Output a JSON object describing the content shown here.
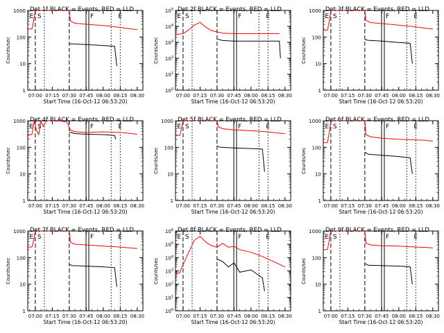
{
  "figure": {
    "xlabel": "Start Time (16-Oct-12 06:53:20)",
    "ylabel": "Counts/sec"
  },
  "chart_data": [
    {
      "type": "line",
      "title": "Det 1f BLACK = Events, RED = LLD",
      "xlabel": "Start Time (16-Oct-12 06:53:20)",
      "ylabel": "Counts/sec",
      "log_y": true,
      "ylim": [
        1,
        1000
      ],
      "yticks": [
        "1",
        "10",
        "100",
        "1000"
      ],
      "xticks": [
        "07:00",
        "07:15",
        "07:30",
        "07:45",
        "08:00",
        "08:15",
        "08:30"
      ],
      "markers": [
        "E",
        "S",
        "F",
        "E"
      ],
      "series": [
        {
          "name": "RED = LLD",
          "color": "#ff0000",
          "x": [
            "06:53",
            "06:57",
            "06:58",
            "07:00",
            "07:01",
            "07:05",
            "07:30",
            "07:31",
            "07:35",
            "07:45",
            "08:00",
            "08:15",
            "08:25",
            "08:30"
          ],
          "values": [
            200,
            200,
            300,
            1000,
            1000,
            1000,
            1000,
            400,
            330,
            300,
            270,
            230,
            200,
            190
          ]
        },
        {
          "name": "BLACK = Events",
          "color": "#000000",
          "x": [
            "07:30",
            "07:33",
            "07:45",
            "08:00",
            "08:10",
            "08:12"
          ],
          "values": [
            55,
            55,
            52,
            48,
            45,
            8
          ]
        }
      ]
    },
    {
      "type": "line",
      "title": "Det 2f BLACK = Events, RED = LLD",
      "xlabel": "Start Time (16-Oct-12 06:53:20)",
      "ylabel": "Counts/sec",
      "log_y": true,
      "ylim": [
        1,
        100000
      ],
      "yticks": [
        "10^0",
        "10^1",
        "10^2",
        "10^3",
        "10^4",
        "10^5"
      ],
      "xticks": [
        "07:00",
        "07:15",
        "07:30",
        "07:45",
        "08:00",
        "08:15",
        "08:30"
      ],
      "markers": [
        "E",
        "S",
        "F",
        "E"
      ],
      "series": [
        {
          "name": "RED = LLD",
          "color": "#ff0000",
          "x": [
            "06:53",
            "07:00",
            "07:05",
            "07:10",
            "07:15",
            "07:20",
            "07:25",
            "07:30",
            "07:35",
            "07:45",
            "08:00",
            "08:15",
            "08:25"
          ],
          "values": [
            3000,
            3500,
            6000,
            12000,
            18000,
            9000,
            5500,
            4500,
            3800,
            3500,
            3500,
            3500,
            3500
          ]
        },
        {
          "name": "BLACK = Events",
          "color": "#000000",
          "x": [
            "07:30",
            "07:35",
            "07:45",
            "08:00",
            "08:15",
            "08:25",
            "08:26"
          ],
          "values": [
            1600,
            1300,
            1200,
            1200,
            1200,
            1200,
            100
          ]
        }
      ]
    },
    {
      "type": "line",
      "title": "Det 3f BLACK = Events, RED = LLD",
      "xlabel": "Start Time (16-Oct-12 06:53:20)",
      "ylabel": "Counts/sec",
      "log_y": true,
      "ylim": [
        1,
        1000
      ],
      "yticks": [
        "1",
        "10",
        "100",
        "1000"
      ],
      "xticks": [
        "07:00",
        "07:15",
        "07:30",
        "07:45",
        "08:00",
        "08:15",
        "08:30"
      ],
      "markers": [
        "E",
        "S",
        "F",
        "E"
      ],
      "series": [
        {
          "name": "RED = LLD",
          "color": "#ff0000",
          "x": [
            "06:53",
            "06:57",
            "06:58",
            "07:00",
            "07:01",
            "07:05",
            "07:30",
            "07:31",
            "07:35",
            "07:45",
            "08:00",
            "08:15",
            "08:25",
            "08:30"
          ],
          "values": [
            180,
            180,
            280,
            950,
            1000,
            1000,
            1000,
            420,
            350,
            320,
            280,
            240,
            210,
            200
          ]
        },
        {
          "name": "BLACK = Events",
          "color": "#000000",
          "x": [
            "07:30",
            "07:33",
            "07:45",
            "08:00",
            "08:10",
            "08:12"
          ],
          "values": [
            80,
            75,
            70,
            62,
            58,
            10
          ]
        }
      ]
    },
    {
      "type": "line",
      "title": "Det 4f BLACK = Events, RED = LLD",
      "xlabel": "Start Time (16-Oct-12 06:53:20)",
      "ylabel": "Counts/sec",
      "log_y": true,
      "ylim": [
        1,
        1000
      ],
      "yticks": [
        "1",
        "10",
        "100",
        "1000"
      ],
      "xticks": [
        "07:00",
        "07:15",
        "07:30",
        "07:45",
        "08:00",
        "08:15",
        "08:30"
      ],
      "markers": [
        "E",
        "S",
        "F",
        "E"
      ],
      "series": [
        {
          "name": "RED = LLD",
          "color": "#ff0000",
          "x": [
            "06:53",
            "06:57",
            "06:59",
            "07:01",
            "07:03",
            "07:05",
            "07:07",
            "07:10",
            "07:20",
            "07:28",
            "07:31",
            "07:35",
            "07:45",
            "08:00",
            "08:15",
            "08:25",
            "08:30"
          ],
          "values": [
            280,
            300,
            1000,
            450,
            300,
            1000,
            600,
            1000,
            1000,
            900,
            450,
            390,
            360,
            380,
            360,
            330,
            310
          ]
        },
        {
          "name": "BLACK = Events",
          "color": "#000000",
          "x": [
            "07:30",
            "07:35",
            "07:45",
            "08:00",
            "08:10",
            "08:11"
          ],
          "values": [
            380,
            330,
            310,
            300,
            280,
            200
          ]
        }
      ]
    },
    {
      "type": "line",
      "title": "Det 5f BLACK = Events, RED = LLD",
      "xlabel": "Start Time (16-Oct-12 06:53:20)",
      "ylabel": "Counts/sec",
      "log_y": true,
      "ylim": [
        1,
        1000
      ],
      "yticks": [
        "1",
        "10",
        "100",
        "1000"
      ],
      "xticks": [
        "07:00",
        "07:15",
        "07:30",
        "07:45",
        "08:00",
        "08:15",
        "08:30"
      ],
      "markers": [
        "E",
        "S",
        "F",
        "E"
      ],
      "series": [
        {
          "name": "RED = LLD",
          "color": "#ff0000",
          "x": [
            "06:53",
            "06:57",
            "06:58",
            "07:00",
            "07:01",
            "07:05",
            "07:30",
            "07:31",
            "07:35",
            "07:45",
            "08:00",
            "08:15",
            "08:25",
            "08:30"
          ],
          "values": [
            280,
            280,
            380,
            1000,
            1000,
            1000,
            1000,
            600,
            500,
            450,
            420,
            380,
            340,
            330
          ]
        },
        {
          "name": "BLACK = Events",
          "color": "#000000",
          "x": [
            "07:30",
            "07:33",
            "07:45",
            "08:00",
            "08:10",
            "08:12"
          ],
          "values": [
            110,
            100,
            95,
            90,
            85,
            12
          ]
        }
      ]
    },
    {
      "type": "line",
      "title": "Det 6f BLACK = Events, RED = LLD",
      "xlabel": "Start Time (16-Oct-12 06:53:20)",
      "ylabel": "Counts/sec",
      "log_y": true,
      "ylim": [
        1,
        1000
      ],
      "yticks": [
        "1",
        "10",
        "100",
        "1000"
      ],
      "xticks": [
        "07:00",
        "07:15",
        "07:30",
        "07:45",
        "08:00",
        "08:15",
        "08:30"
      ],
      "markers": [
        "E",
        "S",
        "F",
        "E"
      ],
      "series": [
        {
          "name": "RED = LLD",
          "color": "#ff0000",
          "x": [
            "06:53",
            "06:57",
            "06:58",
            "07:00",
            "07:01",
            "07:05",
            "07:30",
            "07:31",
            "07:35",
            "07:45",
            "08:00",
            "08:15",
            "08:25",
            "08:30"
          ],
          "values": [
            150,
            150,
            260,
            900,
            1000,
            1000,
            1000,
            300,
            250,
            220,
            200,
            190,
            180,
            170
          ]
        },
        {
          "name": "BLACK = Events",
          "color": "#000000",
          "x": [
            "07:30",
            "07:33",
            "07:45",
            "08:00",
            "08:10",
            "08:12"
          ],
          "values": [
            65,
            55,
            50,
            45,
            40,
            10
          ]
        }
      ]
    },
    {
      "type": "line",
      "title": "Det 7f BLACK = Events, RED = LLD",
      "xlabel": "Start Time (16-Oct-12 06:53:20)",
      "ylabel": "Counts/sec",
      "log_y": true,
      "ylim": [
        1,
        1000
      ],
      "yticks": [
        "1",
        "10",
        "100",
        "1000"
      ],
      "xticks": [
        "07:00",
        "07:15",
        "07:30",
        "07:45",
        "08:00",
        "08:15",
        "08:30"
      ],
      "markers": [
        "E",
        "S",
        "F",
        "E"
      ],
      "series": [
        {
          "name": "RED = LLD",
          "color": "#ff0000",
          "x": [
            "06:53",
            "06:57",
            "06:58",
            "07:00",
            "07:01",
            "07:05",
            "07:30",
            "07:31",
            "07:35",
            "07:45",
            "08:00",
            "08:15",
            "08:25",
            "08:30"
          ],
          "values": [
            250,
            250,
            350,
            1000,
            1000,
            1000,
            1000,
            380,
            320,
            300,
            270,
            250,
            230,
            220
          ]
        },
        {
          "name": "BLACK = Events",
          "color": "#000000",
          "x": [
            "07:30",
            "07:33",
            "07:45",
            "08:00",
            "08:10",
            "08:12"
          ],
          "values": [
            55,
            50,
            48,
            45,
            42,
            8
          ]
        }
      ]
    },
    {
      "type": "line",
      "title": "Det 8f BLACK = Events, RED = LLD",
      "xlabel": "Start Time (16-Oct-12 06:53:20)",
      "ylabel": "Counts/sec",
      "log_y": true,
      "ylim": [
        1,
        1000000
      ],
      "yticks": [
        "10^0",
        "10^1",
        "10^2",
        "10^3",
        "10^4",
        "10^5",
        "10^6"
      ],
      "xticks": [
        "07:00",
        "07:15",
        "07:30",
        "07:45",
        "08:00",
        "08:15",
        "08:30"
      ],
      "markers": [
        "E",
        "S",
        "F",
        "E"
      ],
      "series": [
        {
          "name": "RED = LLD",
          "color": "#ff0000",
          "x": [
            "06:53",
            "06:57",
            "07:00",
            "07:05",
            "07:10",
            "07:15",
            "07:20",
            "07:25",
            "07:30",
            "07:35",
            "07:40",
            "07:45",
            "07:50",
            "08:00",
            "08:10",
            "08:20",
            "08:30"
          ],
          "values": [
            600,
            700,
            3000,
            25000,
            200000,
            400000,
            150000,
            80000,
            60000,
            120000,
            60000,
            70000,
            40000,
            25000,
            12000,
            5000,
            2000
          ]
        },
        {
          "name": "BLACK = Events",
          "color": "#000000",
          "x": [
            "07:30",
            "07:35",
            "07:40",
            "07:45",
            "07:50",
            "08:00",
            "08:10",
            "08:12"
          ],
          "values": [
            8000,
            5000,
            2000,
            4000,
            800,
            1200,
            300,
            30
          ]
        }
      ]
    },
    {
      "type": "line",
      "title": "Det 9f BLACK = Events, RED = LLD",
      "xlabel": "Start Time (16-Oct-12 06:53:20)",
      "ylabel": "Counts/sec",
      "log_y": true,
      "ylim": [
        1,
        1000
      ],
      "yticks": [
        "1",
        "10",
        "100",
        "1000"
      ],
      "xticks": [
        "07:00",
        "07:15",
        "07:30",
        "07:45",
        "08:00",
        "08:15",
        "08:30"
      ],
      "markers": [
        "E",
        "S",
        "F",
        "E"
      ],
      "series": [
        {
          "name": "RED = LLD",
          "color": "#ff0000",
          "x": [
            "06:53",
            "06:57",
            "06:58",
            "07:00",
            "07:01",
            "07:05",
            "07:30",
            "07:31",
            "07:35",
            "07:45",
            "08:00",
            "08:15",
            "08:25",
            "08:30"
          ],
          "values": [
            200,
            200,
            320,
            1000,
            1000,
            1000,
            1000,
            350,
            300,
            280,
            270,
            250,
            240,
            230
          ]
        },
        {
          "name": "BLACK = Events",
          "color": "#000000",
          "x": [
            "07:30",
            "07:33",
            "07:45",
            "08:00",
            "08:10",
            "08:12"
          ],
          "values": [
            60,
            52,
            50,
            48,
            45,
            10
          ]
        }
      ]
    }
  ]
}
